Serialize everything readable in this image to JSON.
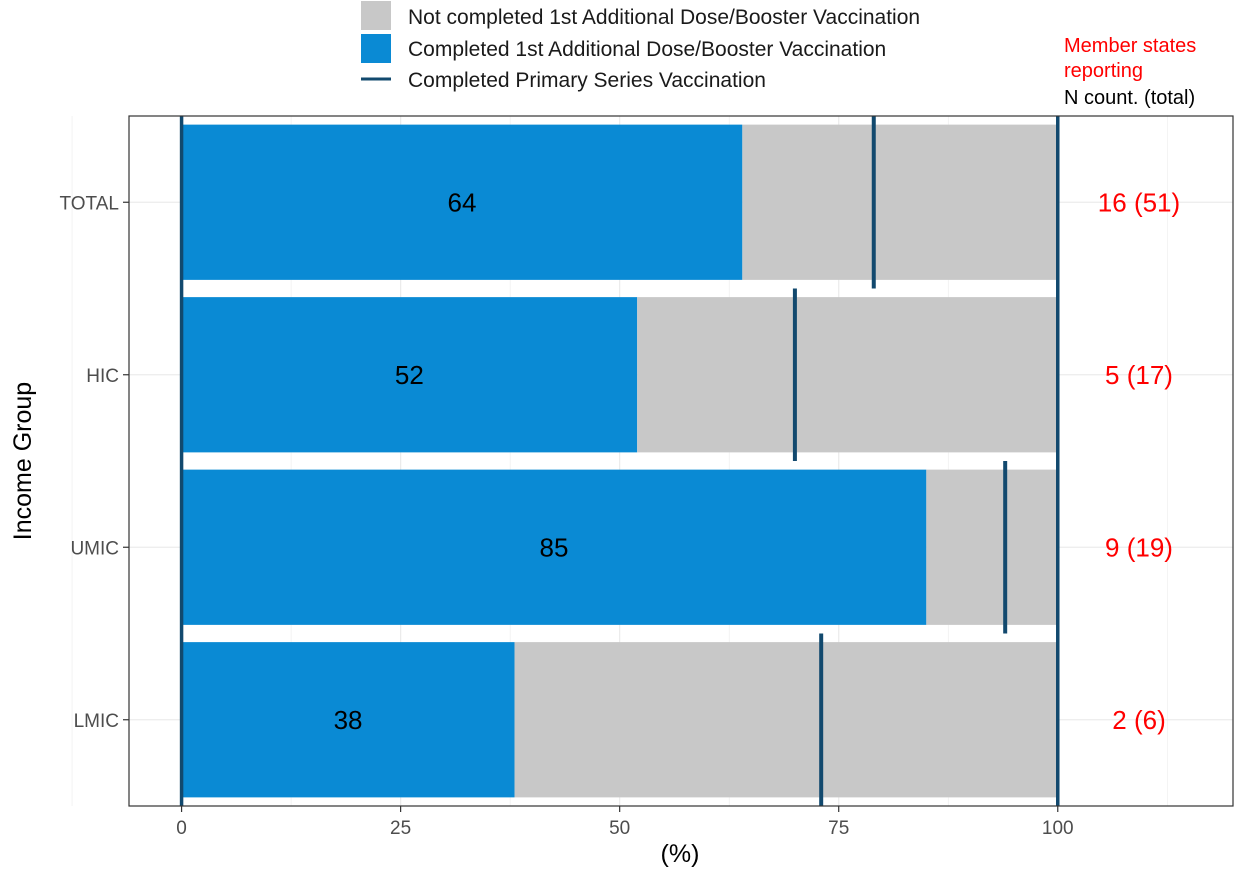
{
  "chart_data": {
    "type": "bar",
    "orientation": "horizontal",
    "stacked": true,
    "categories": [
      "TOTAL",
      "HIC",
      "UMIC",
      "LMIC"
    ],
    "series": [
      {
        "name": "Completed 1st Additional Dose/Booster Vaccination",
        "values": [
          64,
          52,
          85,
          38
        ]
      },
      {
        "name": "Not completed 1st Additional Dose/Booster Vaccination",
        "values": [
          36,
          48,
          15,
          62
        ]
      }
    ],
    "primary_series": {
      "name": "Completed Primary Series Vaccination",
      "values": [
        79,
        70,
        94,
        73
      ]
    },
    "data_labels": [
      "64",
      "52",
      "85",
      "38"
    ],
    "counts": [
      "16 (51)",
      "5 (17)",
      "9 (19)",
      "2 (6)"
    ],
    "count_header": {
      "line1": "Member states",
      "line2": "reporting",
      "line3": "N count. (total)"
    },
    "xlabel": "(%)",
    "ylabel": "Income Group",
    "xlim": [
      -6,
      120
    ],
    "x_ticks": [
      0,
      25,
      50,
      75,
      100
    ],
    "reference_lines": [
      0,
      100
    ],
    "grid": true,
    "legend_position": "top",
    "colors": {
      "completed": "#0a8ad4",
      "not_completed": "#c8c8c8",
      "primary": "#12496e",
      "count_text": "#ff0000",
      "grid": "#ebebeb",
      "frame": "#333333"
    }
  }
}
